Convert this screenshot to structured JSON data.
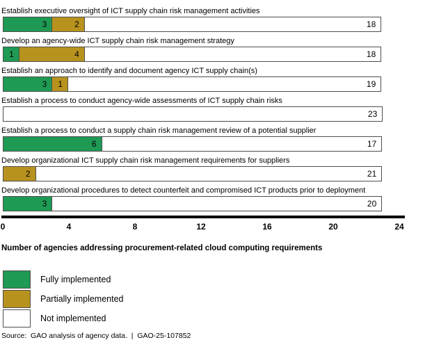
{
  "chart_data": {
    "type": "bar",
    "orientation": "horizontal",
    "stacked": true,
    "grid": false,
    "legend_position": "bottom-left",
    "categories": [
      "Establish executive oversight of ICT supply chain risk management activities",
      "Develop an agency-wide ICT supply chain risk management strategy",
      "Establish an approach to identify and document agency ICT supply chain(s)",
      "Establish a process to conduct agency-wide assessments of ICT supply chain risks",
      "Establish a process to conduct a supply chain risk management review of a potential supplier",
      "Develop organizational ICT supply chain risk management requirements for suppliers",
      "Develop organizational procedures to detect counterfeit and compromised ICT products prior to deployment"
    ],
    "series": [
      {
        "name": "Fully implemented",
        "color": "#1E9A54",
        "values": [
          3,
          1,
          3,
          0,
          6,
          0,
          3
        ]
      },
      {
        "name": "Partially implemented",
        "color": "#B8921E",
        "values": [
          2,
          4,
          1,
          0,
          0,
          2,
          0
        ]
      },
      {
        "name": "Not implemented",
        "color": "#FFFFFF",
        "values": [
          18,
          18,
          19,
          23,
          17,
          21,
          20
        ]
      }
    ],
    "xlim": [
      0,
      24
    ],
    "x_ticks": [
      0,
      4,
      8,
      12,
      16,
      20,
      24
    ],
    "xlabel": "Number of agencies addressing procurement-related cloud computing requirements",
    "ylabel": ""
  },
  "legend": {
    "items": [
      {
        "label": "Fully implemented",
        "color": "#1E9A54"
      },
      {
        "label": "Partially implemented",
        "color": "#B8921E"
      },
      {
        "label": "Not implemented",
        "color": "#FFFFFF"
      }
    ]
  },
  "source_note": "Source:  GAO analysis of agency data.  |  GAO-25-107852"
}
